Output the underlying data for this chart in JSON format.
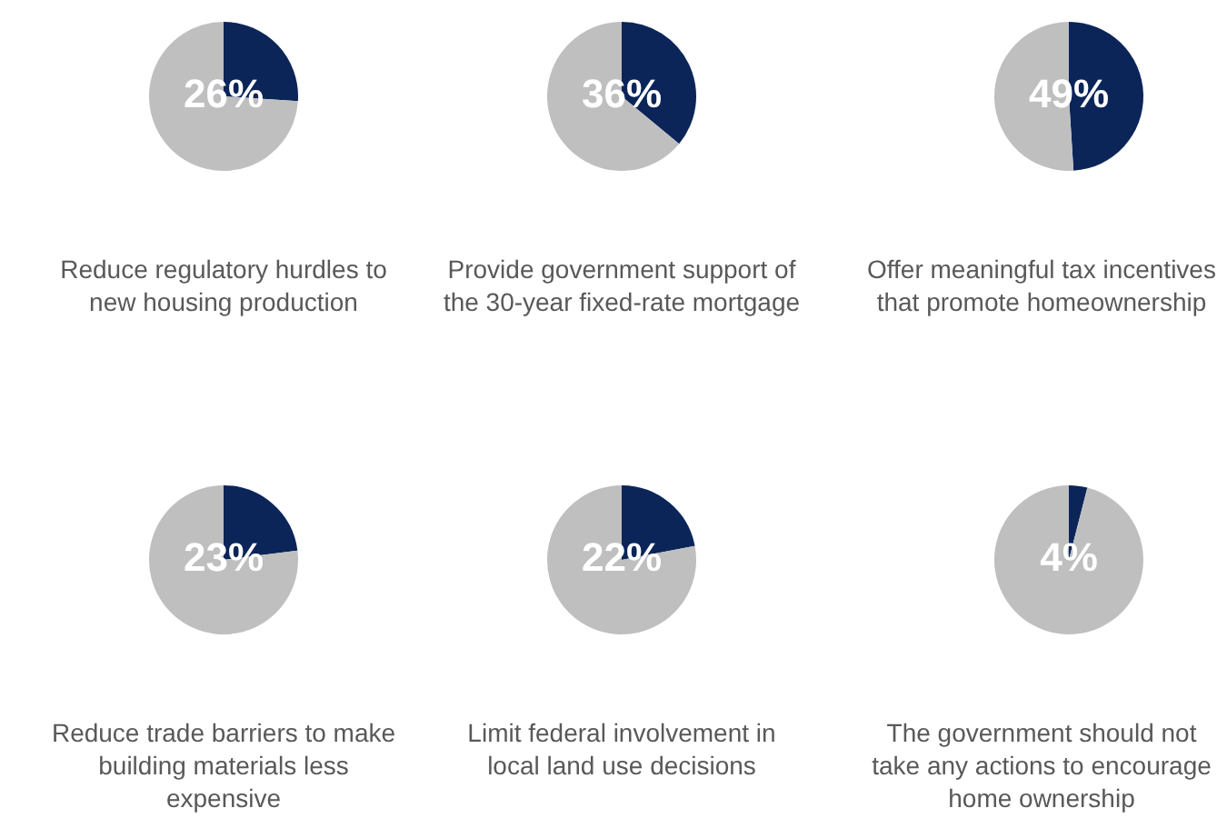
{
  "chart_data": [
    {
      "type": "pie",
      "title": "Reduce regulatory hurdles to new housing production",
      "categories": [
        null,
        null
      ],
      "values": [
        26,
        74
      ],
      "colors": [
        "#0b2559",
        "#bfbfbf"
      ],
      "value_labels": [
        "26%",
        null
      ]
    },
    {
      "type": "pie",
      "title": "Provide government support of the 30-year fixed-rate mortgage",
      "categories": [
        null,
        null
      ],
      "values": [
        36,
        64
      ],
      "colors": [
        "#0b2559",
        "#bfbfbf"
      ],
      "value_labels": [
        "36%",
        null
      ]
    },
    {
      "type": "pie",
      "title": "Offer meaningful tax incentives that promote homeownership",
      "categories": [
        null,
        null
      ],
      "values": [
        49,
        51
      ],
      "colors": [
        "#0b2559",
        "#bfbfbf"
      ],
      "value_labels": [
        "49%",
        null
      ]
    },
    {
      "type": "pie",
      "title": "Reduce trade barriers to make building materials less expensive",
      "categories": [
        null,
        null
      ],
      "values": [
        23,
        77
      ],
      "colors": [
        "#0b2559",
        "#bfbfbf"
      ],
      "value_labels": [
        "23%",
        null
      ]
    },
    {
      "type": "pie",
      "title": "Limit federal involvement in local land use decisions",
      "categories": [
        null,
        null
      ],
      "values": [
        22,
        78
      ],
      "colors": [
        "#0b2559",
        "#bfbfbf"
      ],
      "value_labels": [
        "22%",
        null
      ]
    },
    {
      "type": "pie",
      "title": "The government should not take any actions to encourage home ownership",
      "categories": [
        null,
        null
      ],
      "values": [
        4,
        96
      ],
      "colors": [
        "#0b2559",
        "#bfbfbf"
      ],
      "value_labels": [
        "4%",
        null
      ]
    }
  ]
}
